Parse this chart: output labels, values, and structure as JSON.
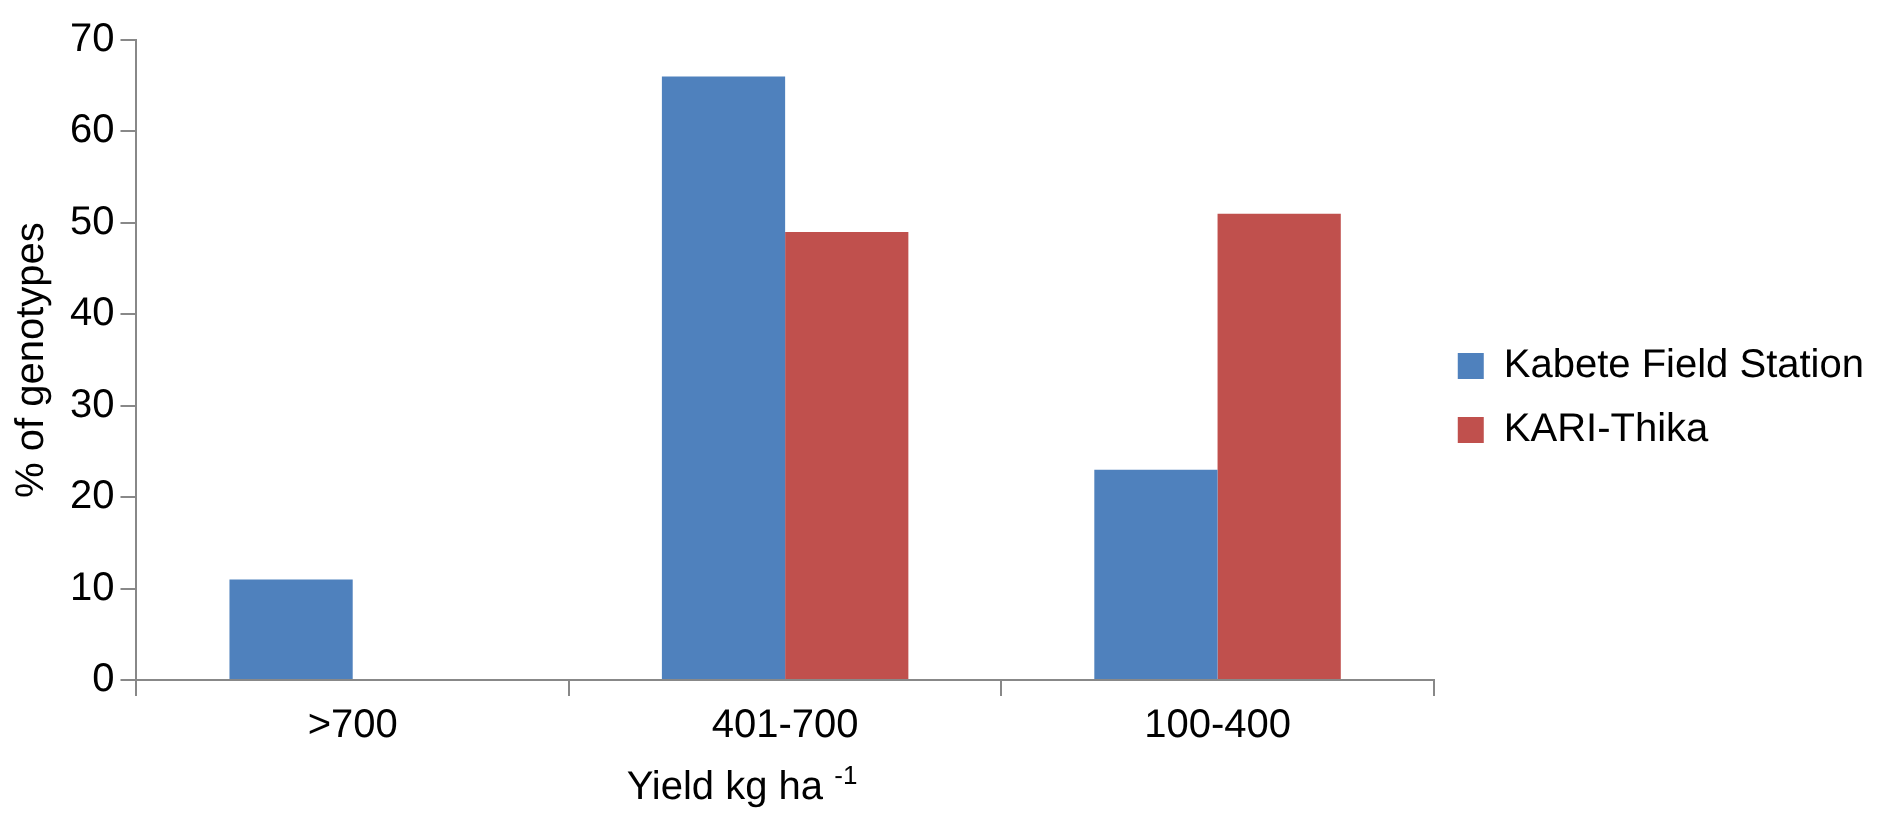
{
  "chart_data": {
    "type": "bar",
    "categories": [
      ">700",
      "401-700",
      "100-400"
    ],
    "series": [
      {
        "name": "Kabete Field Station",
        "color": "#4f81bd",
        "values": [
          11,
          66,
          23
        ]
      },
      {
        "name": "KARI-Thika",
        "color": "#c0504d",
        "values": [
          0,
          49,
          51
        ]
      }
    ],
    "xlabel": "Yield kg ha $^{-1}$",
    "ylabel": "% of genotypes",
    "ylim": [
      0,
      70
    ],
    "yticks": [
      0,
      10,
      20,
      30,
      40,
      50,
      60,
      70
    ],
    "grid": false,
    "legend": "right"
  }
}
